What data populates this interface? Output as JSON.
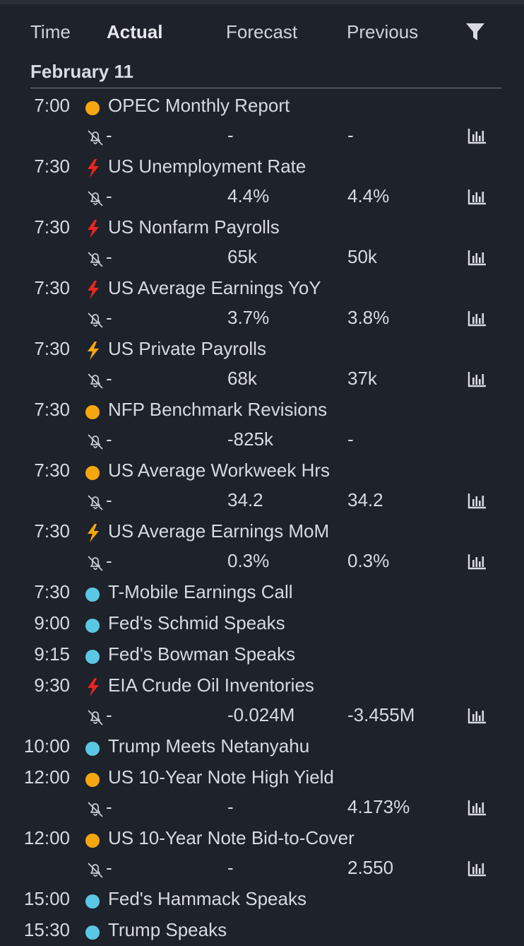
{
  "header": {
    "time_label": "Time",
    "actual_label": "Actual",
    "forecast_label": "Forecast",
    "previous_label": "Previous",
    "filter_icon": "filter-icon"
  },
  "date_label": "February 11",
  "colors": {
    "high_importance": "#e8261f",
    "medium_importance": "#f5a70f",
    "low_importance": "#f5a70f",
    "info": "#5ac8e4",
    "text": "#d7dae0",
    "background": "#1e222b"
  },
  "events": [
    {
      "time": "7:00",
      "importance": "low",
      "title": "OPEC Monthly Report",
      "actual": "-",
      "forecast": "-",
      "previous": "-",
      "has_details": true
    },
    {
      "time": "7:30",
      "importance": "high",
      "title": "US Unemployment Rate",
      "actual": "-",
      "forecast": "4.4%",
      "previous": "4.4%",
      "has_details": true
    },
    {
      "time": "7:30",
      "importance": "high",
      "title": "US Nonfarm Payrolls",
      "actual": "-",
      "forecast": "65k",
      "previous": "50k",
      "has_details": true
    },
    {
      "time": "7:30",
      "importance": "high",
      "title": "US Average Earnings YoY",
      "actual": "-",
      "forecast": "3.7%",
      "previous": "3.8%",
      "has_details": true
    },
    {
      "time": "7:30",
      "importance": "medium",
      "title": "US Private Payrolls",
      "actual": "-",
      "forecast": "68k",
      "previous": "37k",
      "has_details": true
    },
    {
      "time": "7:30",
      "importance": "low",
      "title": "NFP Benchmark Revisions",
      "actual": "-",
      "forecast": "-825k",
      "previous": "-",
      "has_details": false
    },
    {
      "time": "7:30",
      "importance": "low",
      "title": "US Average Workweek Hrs",
      "actual": "-",
      "forecast": "34.2",
      "previous": "34.2",
      "has_details": true
    },
    {
      "time": "7:30",
      "importance": "medium",
      "title": "US Average Earnings MoM",
      "actual": "-",
      "forecast": "0.3%",
      "previous": "0.3%",
      "has_details": true
    },
    {
      "time": "7:30",
      "importance": "info",
      "title": "T-Mobile Earnings Call"
    },
    {
      "time": "9:00",
      "importance": "info",
      "title": "Fed's Schmid Speaks"
    },
    {
      "time": "9:15",
      "importance": "info",
      "title": "Fed's Bowman Speaks"
    },
    {
      "time": "9:30",
      "importance": "high",
      "title": "EIA Crude Oil Inventories",
      "actual": "-",
      "forecast": "-0.024M",
      "previous": "-3.455M",
      "has_details": true
    },
    {
      "time": "10:00",
      "importance": "info",
      "title": "Trump Meets Netanyahu"
    },
    {
      "time": "12:00",
      "importance": "low",
      "title": "US 10-Year Note High Yield",
      "actual": "-",
      "forecast": "-",
      "previous": "4.173%",
      "has_details": true
    },
    {
      "time": "12:00",
      "importance": "low",
      "title": "US 10-Year Note Bid-to-Cover",
      "actual": "-",
      "forecast": "-",
      "previous": "2.550",
      "has_details": true
    },
    {
      "time": "15:00",
      "importance": "info",
      "title": "Fed's Hammack Speaks"
    },
    {
      "time": "15:30",
      "importance": "info",
      "title": "Trump Speaks"
    }
  ]
}
